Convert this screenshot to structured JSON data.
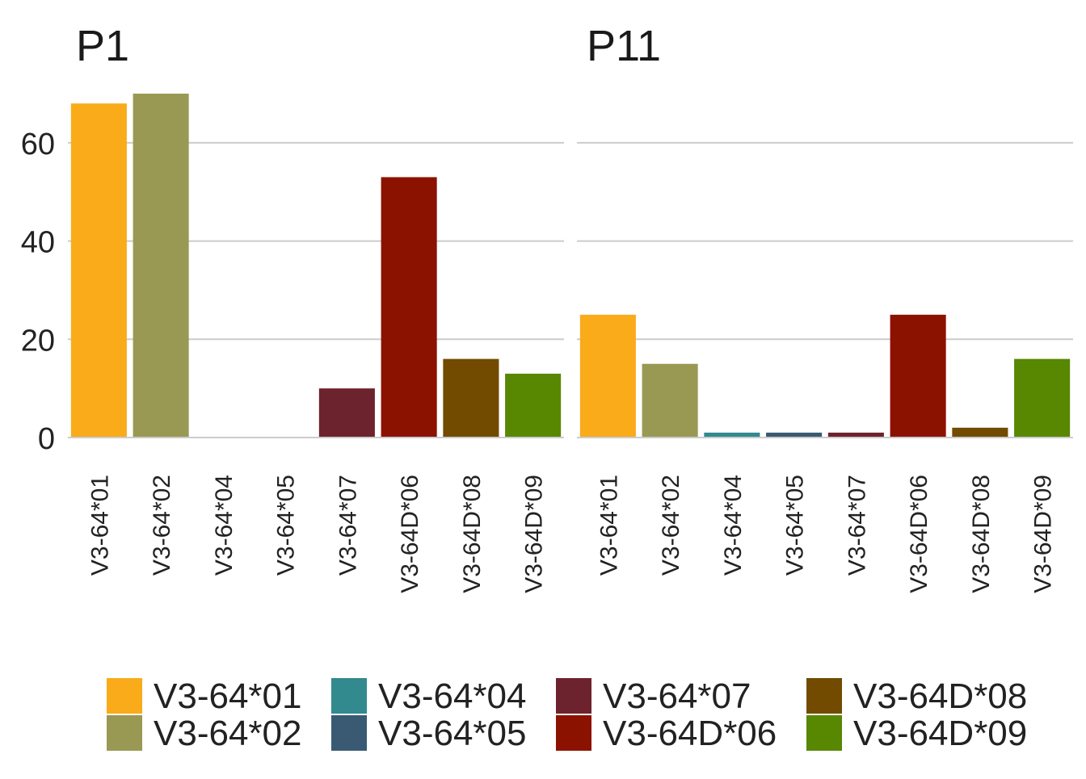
{
  "chart_data": {
    "type": "bar",
    "ylim": [
      0,
      72
    ],
    "yticks": [
      0,
      20,
      40,
      60
    ],
    "grid": "horizontal",
    "legend_position": "bottom",
    "categories": [
      "V3-64*01",
      "V3-64*02",
      "V3-64*04",
      "V3-64*05",
      "V3-64*07",
      "V3-64D*06",
      "V3-64D*08",
      "V3-64D*09"
    ],
    "colors": {
      "V3-64*01": "#F9AB1A",
      "V3-64*02": "#999954",
      "V3-64*04": "#32898E",
      "V3-64*05": "#3A5A74",
      "V3-64*07": "#6D232D",
      "V3-64D*06": "#8C1200",
      "V3-64D*08": "#724B00",
      "V3-64D*09": "#588702"
    },
    "panels": [
      {
        "title": "P1",
        "values": [
          68,
          70,
          0,
          0,
          10,
          53,
          16,
          13
        ]
      },
      {
        "title": "P11",
        "values": [
          25,
          15,
          1,
          1,
          1,
          25,
          2,
          16
        ]
      }
    ],
    "legend": [
      "V3-64*01",
      "V3-64*02",
      "V3-64*04",
      "V3-64*05",
      "V3-64*07",
      "V3-64D*06",
      "V3-64D*08",
      "V3-64D*09"
    ]
  }
}
